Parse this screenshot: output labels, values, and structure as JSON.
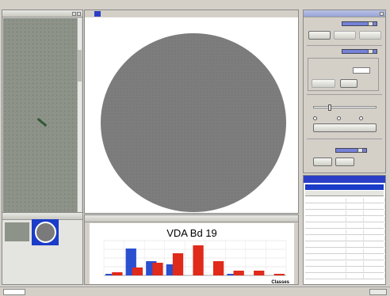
{
  "left_panel": {
    "title": "",
    "thumb_label": ""
  },
  "viewer": {
    "tab": ""
  },
  "chart_panel": {
    "title": ""
  },
  "controls_panel": {
    "title": "",
    "section1_label": "",
    "btn1": "",
    "btn2": "",
    "btn3": "",
    "section2_label": "",
    "group_label": "",
    "field_label": "",
    "field_value": "",
    "btn4": "",
    "btn5": "",
    "section3_label": "",
    "radio1": "",
    "radio2": "",
    "radio3": "",
    "btn6": "",
    "section4_label": "",
    "dropdown_value": "",
    "btn7": "",
    "btn8": ""
  },
  "table_panel": {
    "title": "",
    "subheader": "",
    "columns": [
      "",
      "",
      ""
    ],
    "rows": [
      [
        "",
        "",
        ""
      ],
      [
        "",
        "",
        ""
      ],
      [
        "",
        "",
        ""
      ],
      [
        "",
        "",
        ""
      ],
      [
        "",
        "",
        ""
      ],
      [
        "",
        "",
        ""
      ],
      [
        "",
        "",
        ""
      ],
      [
        "",
        "",
        ""
      ],
      [
        "",
        "",
        ""
      ],
      [
        "",
        "",
        ""
      ],
      [
        "",
        "",
        ""
      ],
      [
        "",
        "",
        ""
      ],
      [
        "",
        "",
        ""
      ]
    ]
  },
  "statusbar": {
    "left": "",
    "right": ""
  },
  "colors": {
    "accent": "#3a4cc4",
    "selection": "#1a3cc8",
    "bar_blue": "#2a4fcf",
    "bar_red": "#e02a1a"
  },
  "chart_data": {
    "type": "bar",
    "title": "VDA Bd 19",
    "xlabel": "Classes",
    "ylabel": "",
    "categories": [
      "",
      "",
      "",
      "",
      "",
      "",
      "",
      "",
      ""
    ],
    "series": [
      {
        "values": [
          1,
          17,
          9,
          7,
          0,
          0,
          1,
          0,
          0
        ]
      },
      {
        "values": [
          2,
          5,
          8,
          14,
          19,
          9,
          3,
          3,
          1
        ]
      }
    ],
    "ylim": [
      0,
      22
    ],
    "grid": true
  }
}
